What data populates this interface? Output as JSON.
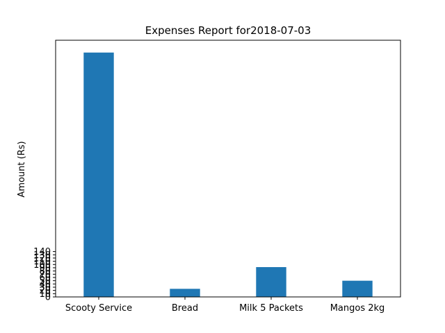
{
  "chart_data": {
    "type": "bar",
    "title": "Expenses Report for2018-07-03",
    "xlabel": "",
    "ylabel": "Amount (Rs)",
    "categories": [
      "Scooty Service",
      "Bread",
      "Milk 5 Packets",
      "Mangos 2kg"
    ],
    "values": [
      754,
      25,
      92,
      50
    ],
    "yticks": [
      0,
      10,
      20,
      30,
      40,
      50,
      60,
      70,
      80,
      90,
      100,
      110,
      120,
      130,
      140
    ],
    "ytick_labels": [
      "0",
      "10",
      "20",
      "30",
      "40",
      "50",
      "60",
      "70",
      "80",
      "90",
      "100",
      "110",
      "120",
      "130",
      "140"
    ],
    "ylim": [
      0,
      792
    ],
    "grid": false,
    "bar_color": "#1f77b4"
  }
}
